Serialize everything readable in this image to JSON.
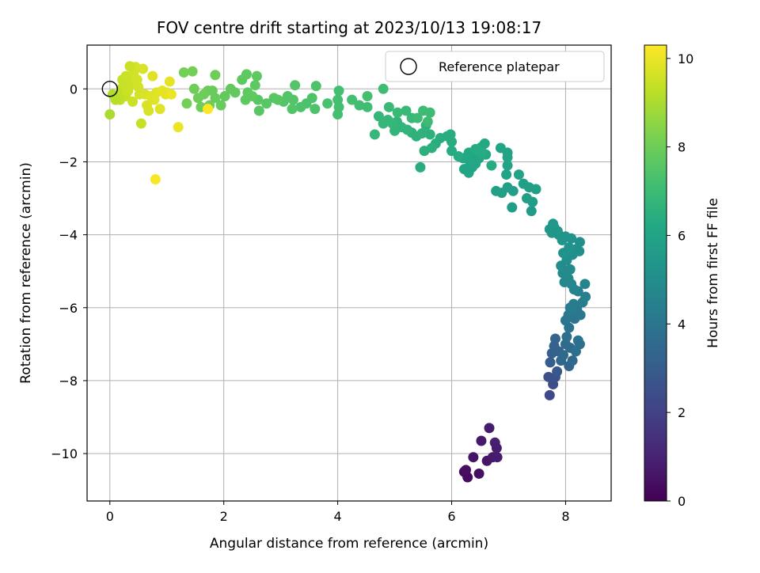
{
  "chart_data": {
    "type": "scatter",
    "title": "FOV centre drift starting at 2023/10/13 19:08:17",
    "xlabel": "Angular distance from reference (arcmin)",
    "ylabel": "Rotation from reference (arcmin)",
    "xlim": [
      -0.4,
      8.8
    ],
    "ylim": [
      -11.3,
      1.2
    ],
    "xticks": [
      "0",
      "2",
      "4",
      "6",
      "8"
    ],
    "yticks": [
      "0",
      "−2",
      "−4",
      "−6",
      "−8",
      "−10"
    ],
    "xtick_values": [
      0,
      2,
      4,
      6,
      8
    ],
    "ytick_values": [
      0,
      -2,
      -4,
      -6,
      -8,
      -10
    ],
    "grid": true,
    "legend": {
      "position": "top-right",
      "entries": [
        "Reference platepar"
      ]
    },
    "colorbar": {
      "label": "Hours from first FF file",
      "range": [
        0,
        10.3
      ],
      "ticks": [
        "0",
        "2",
        "4",
        "6",
        "8",
        "10"
      ],
      "tick_values": [
        0,
        2,
        4,
        6,
        8,
        10
      ],
      "colormap": "viridis"
    },
    "reference": {
      "x": 0,
      "y": 0
    },
    "series": [
      {
        "points": [
          [
            6.22,
            -10.5,
            0.3
          ],
          [
            6.28,
            -10.65,
            0.3
          ],
          [
            6.25,
            -10.45,
            0.4
          ],
          [
            6.38,
            -10.1,
            0.5
          ],
          [
            6.48,
            -10.55,
            0.45
          ],
          [
            6.52,
            -9.65,
            0.7
          ],
          [
            6.62,
            -10.2,
            0.6
          ],
          [
            6.66,
            -9.3,
            0.8
          ],
          [
            6.72,
            -10.1,
            0.7
          ],
          [
            6.76,
            -9.7,
            0.9
          ],
          [
            6.79,
            -9.85,
            0.85
          ],
          [
            6.8,
            -10.1,
            0.8
          ],
          [
            7.72,
            -8.4,
            2.2
          ],
          [
            7.7,
            -7.9,
            2.5
          ],
          [
            7.78,
            -8.1,
            2.4
          ],
          [
            7.82,
            -7.9,
            2.6
          ],
          [
            7.85,
            -7.75,
            2.8
          ],
          [
            7.73,
            -7.5,
            3.0
          ],
          [
            7.76,
            -7.25,
            3.1
          ],
          [
            7.8,
            -7.05,
            3.2
          ],
          [
            7.82,
            -6.85,
            3.3
          ],
          [
            7.88,
            -7.2,
            3.2
          ],
          [
            7.92,
            -7.45,
            3.4
          ],
          [
            7.96,
            -7.3,
            3.5
          ],
          [
            8.0,
            -7.0,
            3.6
          ],
          [
            8.06,
            -7.6,
            3.3
          ],
          [
            8.08,
            -7.1,
            3.6
          ],
          [
            8.12,
            -7.45,
            3.5
          ],
          [
            8.18,
            -7.2,
            3.7
          ],
          [
            8.22,
            -6.9,
            3.9
          ],
          [
            8.25,
            -7.0,
            3.8
          ],
          [
            8.02,
            -6.8,
            3.8
          ],
          [
            8.06,
            -6.55,
            3.9
          ],
          [
            8.0,
            -6.35,
            4.0
          ],
          [
            8.05,
            -6.2,
            4.1
          ],
          [
            8.1,
            -6.1,
            4.2
          ],
          [
            8.16,
            -6.3,
            4.0
          ],
          [
            8.2,
            -6.05,
            4.2
          ],
          [
            8.26,
            -6.2,
            4.1
          ],
          [
            8.3,
            -5.85,
            4.3
          ],
          [
            8.35,
            -5.7,
            4.4
          ],
          [
            8.08,
            -6.0,
            4.3
          ],
          [
            8.14,
            -5.9,
            4.3
          ],
          [
            8.22,
            -5.55,
            4.5
          ],
          [
            8.34,
            -5.35,
            4.6
          ],
          [
            8.15,
            -5.5,
            4.6
          ],
          [
            8.1,
            -5.35,
            4.7
          ],
          [
            8.05,
            -5.2,
            4.8
          ],
          [
            7.98,
            -5.3,
            4.8
          ],
          [
            7.95,
            -5.05,
            4.9
          ],
          [
            7.92,
            -4.85,
            5.0
          ],
          [
            8.02,
            -4.7,
            5.0
          ],
          [
            8.08,
            -4.95,
            4.9
          ],
          [
            8.12,
            -4.55,
            5.0
          ],
          [
            8.18,
            -4.4,
            5.1
          ],
          [
            8.24,
            -4.45,
            5.1
          ],
          [
            8.25,
            -4.2,
            5.1
          ],
          [
            8.02,
            -4.6,
            5.1
          ],
          [
            7.96,
            -4.5,
            5.2
          ],
          [
            8.06,
            -4.35,
            5.2
          ],
          [
            8.1,
            -4.1,
            5.2
          ],
          [
            8.0,
            -4.05,
            5.3
          ],
          [
            7.94,
            -4.15,
            5.3
          ],
          [
            7.88,
            -4.0,
            5.3
          ],
          [
            7.8,
            -3.8,
            5.4
          ],
          [
            7.86,
            -3.9,
            5.4
          ],
          [
            7.76,
            -3.95,
            5.4
          ],
          [
            7.72,
            -3.85,
            5.4
          ],
          [
            7.78,
            -3.7,
            5.4
          ],
          [
            6.22,
            -2.2,
            6.0
          ],
          [
            6.3,
            -2.3,
            6.0
          ],
          [
            6.36,
            -2.15,
            6.0
          ],
          [
            6.42,
            -2.05,
            6.1
          ],
          [
            6.48,
            -1.9,
            6.1
          ],
          [
            6.32,
            -2.0,
            6.1
          ],
          [
            6.38,
            -1.85,
            6.1
          ],
          [
            6.44,
            -1.7,
            6.2
          ],
          [
            6.52,
            -1.6,
            6.2
          ],
          [
            6.58,
            -1.5,
            6.2
          ],
          [
            6.6,
            -1.8,
            6.2
          ],
          [
            6.2,
            -1.9,
            6.2
          ],
          [
            6.3,
            -1.75,
            6.2
          ],
          [
            6.42,
            -1.65,
            6.3
          ],
          [
            6.52,
            -1.75,
            6.3
          ],
          [
            6.7,
            -2.1,
            6.3
          ],
          [
            6.12,
            -1.85,
            6.3
          ],
          [
            6.0,
            -1.7,
            6.3
          ],
          [
            6.0,
            -1.45,
            6.4
          ],
          [
            5.92,
            -1.3,
            6.4
          ],
          [
            5.98,
            -1.25,
            6.4
          ],
          [
            5.8,
            -1.35,
            6.4
          ],
          [
            5.72,
            -1.5,
            6.4
          ],
          [
            5.65,
            -1.62,
            6.5
          ],
          [
            5.52,
            -1.7,
            6.5
          ],
          [
            5.45,
            -2.15,
            6.4
          ],
          [
            5.62,
            -1.25,
            6.5
          ],
          [
            5.55,
            -1.0,
            6.6
          ],
          [
            5.48,
            -1.22,
            6.6
          ],
          [
            5.38,
            -1.3,
            6.6
          ],
          [
            5.3,
            -1.2,
            6.6
          ],
          [
            5.22,
            -1.12,
            6.7
          ],
          [
            5.12,
            -1.05,
            6.7
          ],
          [
            5.04,
            -0.9,
            6.7
          ],
          [
            5.0,
            -1.15,
            6.7
          ],
          [
            4.96,
            -0.95,
            6.8
          ],
          [
            4.88,
            -0.85,
            6.8
          ],
          [
            4.8,
            -0.95,
            6.8
          ],
          [
            4.72,
            -0.75,
            6.8
          ],
          [
            4.65,
            -1.25,
            6.8
          ],
          [
            4.9,
            -0.5,
            6.9
          ],
          [
            5.05,
            -0.65,
            6.9
          ],
          [
            5.2,
            -0.6,
            6.9
          ],
          [
            5.3,
            -0.8,
            6.9
          ],
          [
            5.4,
            -0.8,
            7.0
          ],
          [
            5.5,
            -0.6,
            7.0
          ],
          [
            5.62,
            -0.65,
            7.0
          ],
          [
            5.58,
            -0.9,
            7.0
          ],
          [
            6.78,
            -2.8,
            5.8
          ],
          [
            6.88,
            -2.85,
            5.8
          ],
          [
            6.98,
            -2.7,
            5.8
          ],
          [
            7.06,
            -3.25,
            5.7
          ],
          [
            7.08,
            -2.8,
            5.8
          ],
          [
            7.18,
            -2.35,
            5.9
          ],
          [
            7.26,
            -2.6,
            5.8
          ],
          [
            7.32,
            -3.0,
            5.7
          ],
          [
            7.36,
            -2.7,
            5.8
          ],
          [
            7.4,
            -3.35,
            5.6
          ],
          [
            7.48,
            -2.75,
            5.8
          ],
          [
            7.42,
            -3.1,
            5.7
          ],
          [
            6.98,
            -2.1,
            5.9
          ],
          [
            6.98,
            -1.75,
            6.0
          ],
          [
            6.98,
            -1.88,
            6.0
          ],
          [
            6.96,
            -2.35,
            5.9
          ],
          [
            6.86,
            -1.62,
            6.0
          ],
          [
            4.8,
            0.0,
            7.1
          ],
          [
            4.52,
            -0.2,
            7.2
          ],
          [
            4.52,
            -0.5,
            7.1
          ],
          [
            4.38,
            -0.45,
            7.1
          ],
          [
            4.25,
            -0.3,
            7.2
          ],
          [
            4.02,
            -0.05,
            7.2
          ],
          [
            4.02,
            -0.5,
            7.2
          ],
          [
            4.0,
            -0.3,
            7.2
          ],
          [
            4.0,
            -0.7,
            7.2
          ],
          [
            3.82,
            -0.4,
            7.3
          ],
          [
            3.6,
            -0.55,
            7.4
          ],
          [
            3.55,
            -0.25,
            7.4
          ],
          [
            3.62,
            0.08,
            7.4
          ],
          [
            3.45,
            -0.4,
            7.4
          ],
          [
            3.35,
            -0.5,
            7.4
          ],
          [
            3.2,
            -0.55,
            7.5
          ],
          [
            3.22,
            -0.3,
            7.5
          ],
          [
            3.25,
            0.1,
            7.5
          ],
          [
            3.12,
            -0.2,
            7.5
          ],
          [
            3.05,
            -0.35,
            7.5
          ],
          [
            2.95,
            -0.3,
            7.6
          ],
          [
            2.88,
            -0.25,
            7.6
          ],
          [
            2.75,
            -0.4,
            7.6
          ],
          [
            2.62,
            -0.6,
            7.6
          ],
          [
            2.6,
            -0.3,
            7.6
          ],
          [
            2.5,
            -0.2,
            7.7
          ],
          [
            2.42,
            -0.1,
            7.7
          ],
          [
            2.38,
            -0.3,
            7.7
          ],
          [
            2.32,
            0.25,
            7.7
          ],
          [
            2.4,
            0.4,
            7.7
          ],
          [
            2.55,
            0.1,
            7.7
          ],
          [
            2.58,
            0.35,
            7.7
          ],
          [
            2.2,
            -0.1,
            7.8
          ],
          [
            2.12,
            0.0,
            7.8
          ],
          [
            2.02,
            -0.2,
            7.8
          ],
          [
            1.95,
            -0.45,
            7.9
          ],
          [
            1.85,
            -0.25,
            7.9
          ],
          [
            1.8,
            -0.05,
            7.9
          ],
          [
            1.72,
            -0.05,
            7.9
          ],
          [
            1.65,
            -0.15,
            8.0
          ],
          [
            1.55,
            -0.25,
            8.0
          ],
          [
            1.48,
            0.0,
            8.0
          ],
          [
            1.35,
            -0.4,
            8.1
          ],
          [
            1.3,
            0.45,
            8.1
          ],
          [
            1.45,
            0.48,
            8.1
          ],
          [
            1.85,
            0.38,
            8.0
          ],
          [
            1.6,
            -0.5,
            8.0
          ],
          [
            1.75,
            -0.45,
            8.0
          ],
          [
            0.0,
            -0.7,
            9.0
          ],
          [
            0.1,
            -0.25,
            9.2
          ],
          [
            0.15,
            -0.15,
            9.3
          ],
          [
            0.2,
            0.0,
            9.3
          ],
          [
            0.25,
            0.1,
            9.4
          ],
          [
            0.28,
            -0.2,
            9.4
          ],
          [
            0.3,
            0.2,
            9.4
          ],
          [
            0.32,
            -0.05,
            9.5
          ],
          [
            0.35,
            0.3,
            9.5
          ],
          [
            0.38,
            0.15,
            9.5
          ],
          [
            0.4,
            -0.35,
            9.5
          ],
          [
            0.42,
            0.45,
            9.6
          ],
          [
            0.45,
            0.6,
            9.6
          ],
          [
            0.48,
            0.25,
            9.6
          ],
          [
            0.5,
            0.05,
            9.6
          ],
          [
            0.52,
            -0.15,
            9.6
          ],
          [
            0.55,
            -0.95,
            9.4
          ],
          [
            0.58,
            0.55,
            9.7
          ],
          [
            0.62,
            -0.15,
            9.7
          ],
          [
            0.65,
            -0.45,
            9.7
          ],
          [
            0.68,
            -0.6,
            9.7
          ],
          [
            0.72,
            -0.2,
            9.8
          ],
          [
            0.75,
            0.35,
            9.8
          ],
          [
            0.78,
            -0.3,
            9.8
          ],
          [
            0.82,
            -0.1,
            9.8
          ],
          [
            0.88,
            -0.55,
            9.8
          ],
          [
            0.92,
            -0.05,
            9.9
          ],
          [
            0.98,
            -0.15,
            9.9
          ],
          [
            1.05,
            0.2,
            9.9
          ],
          [
            1.2,
            -1.05,
            10.0
          ],
          [
            0.8,
            -2.48,
            10.2
          ],
          [
            1.72,
            -0.55,
            10.3
          ],
          [
            0.22,
            0.25,
            9.4
          ],
          [
            0.18,
            -0.3,
            9.3
          ],
          [
            0.05,
            -0.15,
            9.1
          ],
          [
            0.1,
            -0.3,
            9.2
          ],
          [
            0.28,
            0.35,
            9.5
          ],
          [
            0.35,
            0.62,
            9.5
          ],
          [
            1.0,
            -0.1,
            9.9
          ],
          [
            1.08,
            -0.15,
            10.0
          ]
        ]
      }
    ]
  }
}
